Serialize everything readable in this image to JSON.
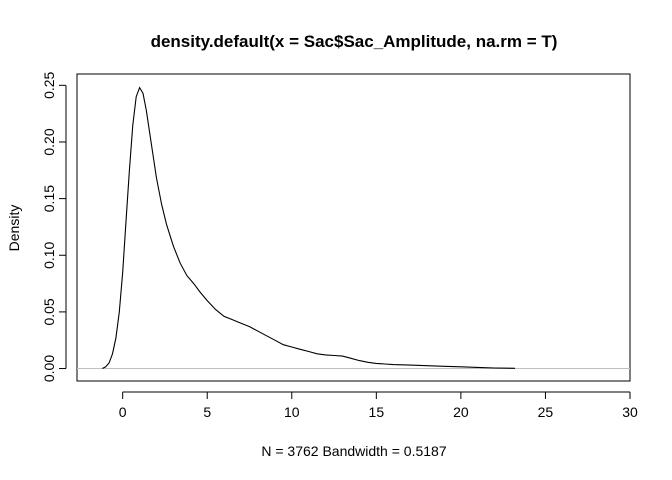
{
  "chart_data": {
    "type": "line",
    "title": "density.default(x = Sac$Sac_Amplitude, na.rm = T)",
    "xlabel": "N = 3762   Bandwidth = 0.5187",
    "ylabel": "Density",
    "xlim": [
      -2.7,
      30
    ],
    "ylim": [
      -0.011,
      0.26
    ],
    "x_ticks": [
      0,
      5,
      10,
      15,
      20,
      25,
      30
    ],
    "x_tick_labels": [
      "0",
      "5",
      "10",
      "15",
      "20",
      "25",
      "30"
    ],
    "y_ticks": [
      0.0,
      0.05,
      0.1,
      0.15,
      0.2,
      0.25
    ],
    "y_tick_labels": [
      "0.00",
      "0.05",
      "0.10",
      "0.15",
      "0.20",
      "0.25"
    ],
    "baseline": 0,
    "baseline_color": "#bebebe",
    "line_color": "#000000",
    "grid": false,
    "series": [
      {
        "x": [
          -1.2,
          -1.0,
          -0.8,
          -0.6,
          -0.4,
          -0.2,
          0.0,
          0.2,
          0.4,
          0.6,
          0.8,
          1.0,
          1.2,
          1.4,
          1.6,
          1.8,
          2.0,
          2.3,
          2.6,
          3.0,
          3.4,
          3.8,
          4.2,
          4.6,
          5.0,
          5.5,
          6.0,
          6.5,
          7.0,
          7.5,
          8.0,
          8.5,
          9.0,
          9.5,
          10.0,
          10.5,
          11.0,
          11.5,
          12.0,
          12.5,
          13.0,
          13.5,
          14.0,
          14.5,
          15.0,
          15.5,
          16.0,
          17.0,
          18.0,
          19.0,
          20.0,
          21.0,
          22.0,
          23.2
        ],
        "y": [
          0.0,
          0.0015,
          0.005,
          0.013,
          0.027,
          0.05,
          0.085,
          0.13,
          0.175,
          0.215,
          0.24,
          0.248,
          0.243,
          0.228,
          0.208,
          0.188,
          0.168,
          0.145,
          0.127,
          0.108,
          0.093,
          0.082,
          0.075,
          0.067,
          0.06,
          0.052,
          0.046,
          0.043,
          0.04,
          0.037,
          0.033,
          0.029,
          0.025,
          0.021,
          0.019,
          0.017,
          0.015,
          0.013,
          0.012,
          0.0115,
          0.011,
          0.009,
          0.007,
          0.0055,
          0.0045,
          0.004,
          0.0035,
          0.003,
          0.0025,
          0.002,
          0.0015,
          0.001,
          0.0005,
          0.0002
        ]
      }
    ]
  }
}
